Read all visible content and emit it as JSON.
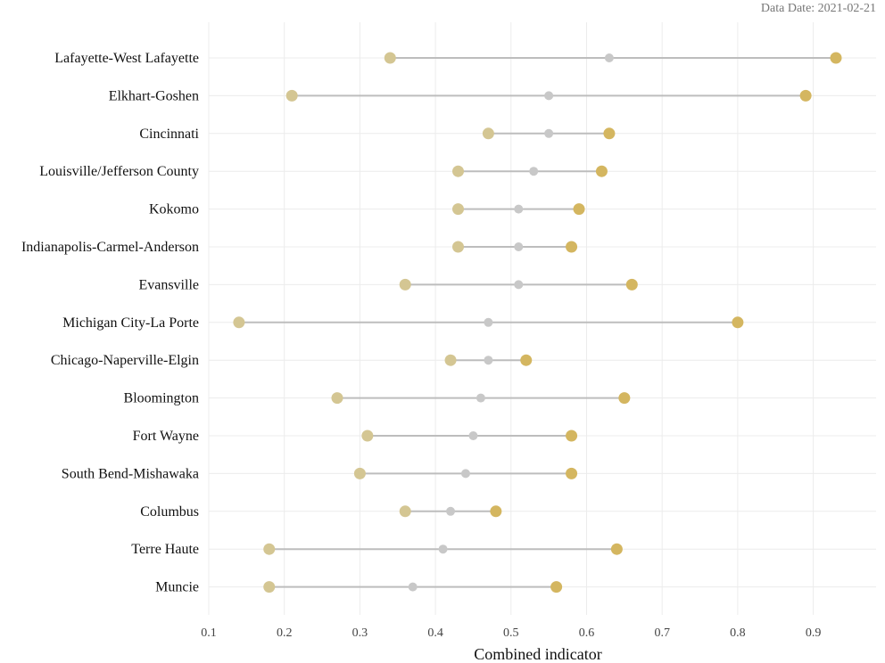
{
  "note": "Data Date: 2021-02-21",
  "chart_data": {
    "type": "dumbbell",
    "xlabel": "Combined indicator",
    "xlim": [
      0.1,
      0.98
    ],
    "xticks": [
      0.1,
      0.2,
      0.3,
      0.4,
      0.5,
      0.6,
      0.7,
      0.8,
      0.9
    ],
    "grid": true,
    "colors": {
      "low": "#d4c693",
      "mid": "#c8c8c8",
      "high": "#d4b660",
      "segment": "#bdbdbd",
      "grid": "#ececec"
    },
    "categories": [
      "Lafayette-West Lafayette",
      "Elkhart-Goshen",
      "Cincinnati",
      "Louisville/Jefferson County",
      "Kokomo",
      "Indianapolis-Carmel-Anderson",
      "Evansville",
      "Michigan City-La Porte",
      "Chicago-Naperville-Elgin",
      "Bloomington",
      "Fort Wayne",
      "South Bend-Mishawaka",
      "Columbus",
      "Terre Haute",
      "Muncie"
    ],
    "low": [
      0.34,
      0.21,
      0.47,
      0.43,
      0.43,
      0.43,
      0.36,
      0.14,
      0.42,
      0.27,
      0.31,
      0.3,
      0.36,
      0.18,
      0.18
    ],
    "mid": [
      0.63,
      0.55,
      0.55,
      0.53,
      0.51,
      0.51,
      0.51,
      0.47,
      0.47,
      0.46,
      0.45,
      0.44,
      0.42,
      0.41,
      0.37
    ],
    "high": [
      0.93,
      0.89,
      0.63,
      0.62,
      0.59,
      0.58,
      0.66,
      0.8,
      0.52,
      0.65,
      0.58,
      0.58,
      0.48,
      0.64,
      0.56
    ]
  }
}
